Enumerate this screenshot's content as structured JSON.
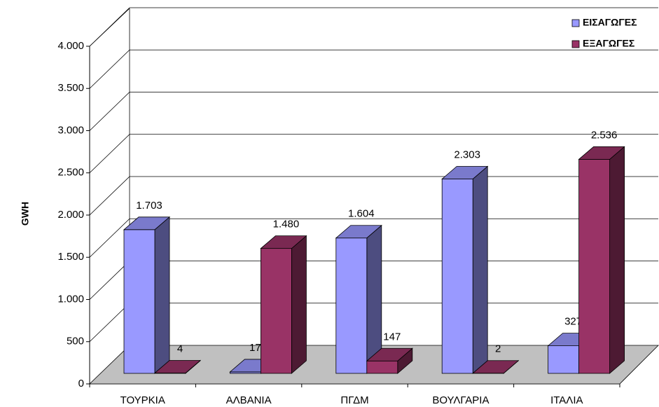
{
  "chart_data": {
    "type": "bar3d",
    "y_label": "GWH",
    "categories": [
      "ΤΟΥΡΚΙΑ",
      "ΑΛΒΑΝΙΑ",
      "ΠΓΔΜ",
      "ΒΟΥΛΓΑΡΙΑ",
      "ΙΤΑΛΙΑ"
    ],
    "series": [
      {
        "name": "ΕΙΣΑΓΩΓΕΣ",
        "color": "#9999ff",
        "values": [
          1703,
          17,
          1604,
          2303,
          327
        ],
        "value_labels": [
          "1.703",
          "17",
          "1.604",
          "2.303",
          "327"
        ]
      },
      {
        "name": "ΕΞΑΓΩΓΕΣ",
        "color": "#993366",
        "values": [
          4,
          1480,
          147,
          2,
          2536
        ],
        "value_labels": [
          "4",
          "1.480",
          "147",
          "2",
          "2.536"
        ]
      }
    ],
    "ylim": [
      0,
      4000
    ],
    "yticks": [
      0,
      500,
      {
        "value": 1000,
        "label": "1.000"
      },
      {
        "value": 1500,
        "label": "1.500"
      },
      {
        "value": 2000,
        "label": "2.000"
      },
      {
        "value": 2500,
        "label": "2.500"
      },
      {
        "value": 3000,
        "label": "3.000"
      },
      {
        "value": 3500,
        "label": "3.500"
      },
      {
        "value": 4000,
        "label": "4.000"
      }
    ],
    "grid": true,
    "legend": "top-right"
  }
}
